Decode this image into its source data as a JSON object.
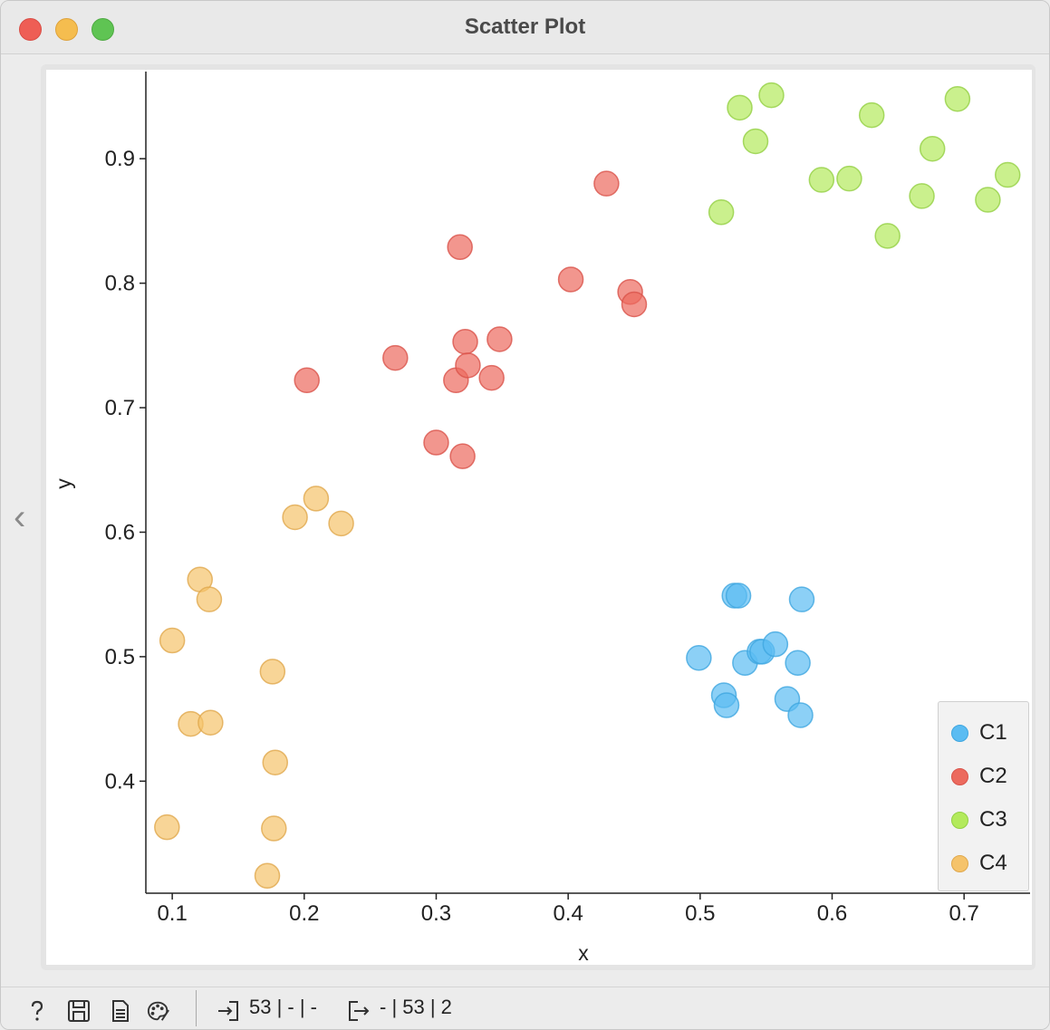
{
  "window": {
    "title": "Scatter Plot"
  },
  "chart_data": {
    "type": "scatter",
    "xlabel": "x",
    "ylabel": "y",
    "xlim": [
      0.08,
      0.75
    ],
    "ylim": [
      0.31,
      0.97
    ],
    "xticks": [
      "0.1",
      "0.2",
      "0.3",
      "0.4",
      "0.5",
      "0.6",
      "0.7"
    ],
    "xtick_values": [
      0.1,
      0.2,
      0.3,
      0.4,
      0.5,
      0.6,
      0.7
    ],
    "yticks": [
      "0.4",
      "0.5",
      "0.6",
      "0.7",
      "0.8",
      "0.9"
    ],
    "ytick_values": [
      0.4,
      0.5,
      0.6,
      0.7,
      0.8,
      0.9
    ],
    "grid": false,
    "legend": "bottom-right",
    "series": [
      {
        "name": "C1",
        "color": "#5bbcf2",
        "edge": "#3fa6e0",
        "points": [
          [
            0.499,
            0.499
          ],
          [
            0.518,
            0.469
          ],
          [
            0.52,
            0.461
          ],
          [
            0.526,
            0.549
          ],
          [
            0.529,
            0.549
          ],
          [
            0.534,
            0.495
          ],
          [
            0.545,
            0.504
          ],
          [
            0.547,
            0.504
          ],
          [
            0.557,
            0.51
          ],
          [
            0.566,
            0.466
          ],
          [
            0.574,
            0.495
          ],
          [
            0.576,
            0.453
          ],
          [
            0.577,
            0.546
          ]
        ]
      },
      {
        "name": "C2",
        "color": "#ec6a5e",
        "edge": "#d9534a",
        "points": [
          [
            0.202,
            0.722
          ],
          [
            0.269,
            0.74
          ],
          [
            0.3,
            0.672
          ],
          [
            0.315,
            0.722
          ],
          [
            0.318,
            0.829
          ],
          [
            0.32,
            0.661
          ],
          [
            0.322,
            0.753
          ],
          [
            0.324,
            0.734
          ],
          [
            0.342,
            0.724
          ],
          [
            0.348,
            0.755
          ],
          [
            0.402,
            0.803
          ],
          [
            0.429,
            0.88
          ],
          [
            0.447,
            0.793
          ],
          [
            0.45,
            0.783
          ]
        ]
      },
      {
        "name": "C3",
        "color": "#b3ea5c",
        "edge": "#93d044",
        "points": [
          [
            0.516,
            0.857
          ],
          [
            0.53,
            0.941
          ],
          [
            0.542,
            0.914
          ],
          [
            0.554,
            0.951
          ],
          [
            0.592,
            0.883
          ],
          [
            0.613,
            0.884
          ],
          [
            0.63,
            0.935
          ],
          [
            0.642,
            0.838
          ],
          [
            0.668,
            0.87
          ],
          [
            0.676,
            0.908
          ],
          [
            0.695,
            0.948
          ],
          [
            0.718,
            0.867
          ],
          [
            0.733,
            0.887
          ]
        ]
      },
      {
        "name": "C4",
        "color": "#f5c36b",
        "edge": "#e0a84c",
        "points": [
          [
            0.096,
            0.363
          ],
          [
            0.1,
            0.513
          ],
          [
            0.114,
            0.446
          ],
          [
            0.121,
            0.562
          ],
          [
            0.128,
            0.546
          ],
          [
            0.129,
            0.447
          ],
          [
            0.172,
            0.324
          ],
          [
            0.176,
            0.488
          ],
          [
            0.177,
            0.362
          ],
          [
            0.178,
            0.415
          ],
          [
            0.193,
            0.612
          ],
          [
            0.209,
            0.627
          ],
          [
            0.228,
            0.607
          ]
        ]
      }
    ]
  },
  "statusbar": {
    "input_summary": "53 | - | -",
    "output_summary": "- | 53 | 2"
  }
}
